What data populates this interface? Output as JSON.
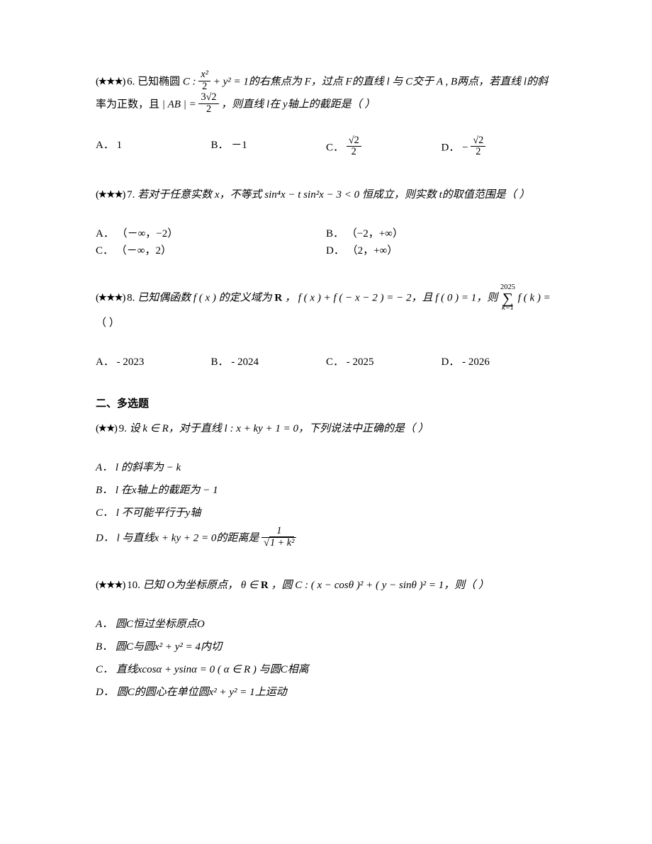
{
  "q6": {
    "stars": "(★★★)",
    "number": "6.",
    "text_pre": "已知椭圆 ",
    "ellipse_label": "C : ",
    "frac_num": "x²",
    "frac_den": "2",
    "text_mid1": " + y² = 1的右焦点为 F，过点 F的直线 l 与 C交于 A , B两点，若直线 l的斜",
    "text_line2_pre": "率为正数，且 ",
    "ab_eq": "| AB | = ",
    "ab_num": "3√2",
    "ab_den": "2",
    "text_line2_post": "，则直线 l在 y轴上的截距是（  ）",
    "options": {
      "A": {
        "label": "A．",
        "value": "1"
      },
      "B": {
        "label": "B．",
        "value": "－1"
      },
      "C": {
        "label": "C．",
        "frac_num": "√2",
        "frac_den": "2"
      },
      "D": {
        "label": "D．",
        "prefix": "− ",
        "frac_num": "√2",
        "frac_den": "2"
      }
    }
  },
  "q7": {
    "stars": "(★★★)",
    "number": "7.",
    "text_pre": "若对于任意实数 x，不等式 ",
    "expr": "sin⁴x − t sin²x − 3 < 0",
    "text_post": "恒成立，则实数 t的取值范围是（  ）",
    "options": {
      "A": {
        "label": "A．",
        "value": "（－∞，−2）"
      },
      "B": {
        "label": "B．",
        "value": "（−2，+∞）"
      },
      "C": {
        "label": "C．",
        "value": "（－∞，2）"
      },
      "D": {
        "label": "D．",
        "value": "（2，+∞）"
      }
    }
  },
  "q8": {
    "stars": "(★★★)",
    "number": "8.",
    "text_line1a": "已知偶函数 f ( x ) 的定义域为 ",
    "R_bold": "R",
    "text_line1b": "， f ( x ) + f ( − x − 2 ) = − 2，且 f ( 0 ) = 1，则 ",
    "sum_top": "2025",
    "sum_bottom": "k=1",
    "sum_post": " f ( k ) =",
    "text_line2": "（  ）",
    "options": {
      "A": {
        "label": "A．",
        "value": "- 2023"
      },
      "B": {
        "label": "B．",
        "value": "- 2024"
      },
      "C": {
        "label": "C．",
        "value": "- 2025"
      },
      "D": {
        "label": "D．",
        "value": "- 2026"
      }
    }
  },
  "section2": {
    "title": "二、多选题"
  },
  "q9": {
    "stars": "(★★)",
    "number": "9.",
    "text": "设 k ∈ R，对于直线 l : x + ky + 1 = 0，下列说法中正确的是（  ）",
    "options": {
      "A": {
        "label": "A．",
        "value": "l 的斜率为 − k"
      },
      "B": {
        "label": "B．",
        "value": "l 在x轴上的截距为 − 1"
      },
      "C": {
        "label": "C．",
        "value": "l 不可能平行于y轴"
      },
      "D": {
        "label": "D．",
        "pre": "l 与直线x + ky + 2 = 0的距离是",
        "frac_num": "1",
        "frac_den_sqrt": "1 + k²"
      }
    }
  },
  "q10": {
    "stars": "(★★★)",
    "number": "10.",
    "text_pre": "已知 O为坐标原点， θ ∈ ",
    "R_bold": "R",
    "text_mid": "，圆 C : ( x − cosθ )² + ( y − sinθ )² = 1，则（  ）",
    "options": {
      "A": {
        "label": "A．",
        "value": "圆C恒过坐标原点O"
      },
      "B": {
        "label": "B．",
        "value": "圆C与圆x² + y² = 4内切"
      },
      "C": {
        "label": "C．",
        "value": "直线xcosα + ysinα = 0 ( α ∈ R ) 与圆C相离"
      },
      "D": {
        "label": "D．",
        "value": "圆C的圆心在单位圆x² + y² = 1上运动"
      }
    }
  }
}
